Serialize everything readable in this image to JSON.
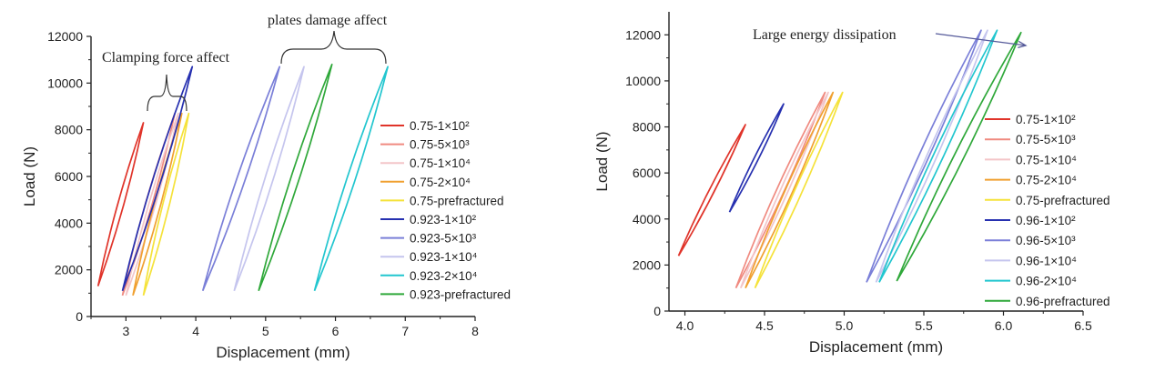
{
  "chart_data": [
    {
      "type": "line",
      "xlabel": "Displacement (mm)",
      "ylabel": "Load (N)",
      "xlim": [
        2.5,
        8
      ],
      "ylim": [
        0,
        12000
      ],
      "xticks": [
        "3",
        "4",
        "5",
        "6",
        "7",
        "8"
      ],
      "yticks": [
        "0",
        "2000",
        "4000",
        "6000",
        "8000",
        "10000",
        "12000"
      ],
      "legend": "right",
      "annotations": [
        "plates damage affect",
        "Clamping force affect"
      ],
      "series": [
        {
          "name": "0.75-1×10²",
          "color": "#e0342a",
          "lower": [
            [
              2.6,
              1300
            ],
            [
              3.25,
              8300
            ]
          ],
          "upper": [
            [
              2.6,
              1300
            ],
            [
              3.25,
              8300
            ]
          ]
        },
        {
          "name": "0.75-5×10³",
          "color": "#f08a80",
          "lower": [
            [
              2.95,
              900
            ],
            [
              3.7,
              8700
            ]
          ],
          "upper": [
            [
              2.95,
              900
            ],
            [
              3.7,
              8700
            ]
          ]
        },
        {
          "name": "0.75-1×10⁴",
          "color": "#f3c5c8",
          "lower": [
            [
              3.0,
              900
            ],
            [
              3.75,
              8700
            ]
          ],
          "upper": [
            [
              3.0,
              900
            ],
            [
              3.75,
              8700
            ]
          ]
        },
        {
          "name": "0.75-2×10⁴",
          "color": "#f0a030",
          "lower": [
            [
              3.1,
              900
            ],
            [
              3.8,
              8700
            ]
          ],
          "upper": [
            [
              3.1,
              900
            ],
            [
              3.8,
              8700
            ]
          ]
        },
        {
          "name": "0.75-prefractured",
          "color": "#f5e23a",
          "lower": [
            [
              3.25,
              900
            ],
            [
              3.9,
              8700
            ]
          ],
          "upper": [
            [
              3.25,
              900
            ],
            [
              3.9,
              8700
            ]
          ]
        },
        {
          "name": "0.923-1×10²",
          "color": "#2630b0",
          "lower": [
            [
              2.95,
              1100
            ],
            [
              3.95,
              10700
            ]
          ],
          "upper": [
            [
              2.95,
              1100
            ],
            [
              3.95,
              10700
            ]
          ]
        },
        {
          "name": "0.923-5×10³",
          "color": "#7a7fd8",
          "lower": [
            [
              4.1,
              1100
            ],
            [
              5.2,
              10700
            ]
          ],
          "upper": [
            [
              4.1,
              1100
            ],
            [
              5.2,
              10700
            ]
          ]
        },
        {
          "name": "0.923-1×10⁴",
          "color": "#c5c5ee",
          "lower": [
            [
              4.55,
              1100
            ],
            [
              5.55,
              10700
            ]
          ],
          "upper": [
            [
              4.55,
              1100
            ],
            [
              5.55,
              10700
            ]
          ]
        },
        {
          "name": "0.923-2×10⁴",
          "color": "#22c6cf",
          "lower": [
            [
              5.7,
              1100
            ],
            [
              6.75,
              10700
            ]
          ],
          "upper": [
            [
              5.7,
              1100
            ],
            [
              6.75,
              10700
            ]
          ]
        },
        {
          "name": "0.923-prefractured",
          "color": "#2fa83a",
          "lower": [
            [
              4.9,
              1100
            ],
            [
              5.95,
              10800
            ]
          ],
          "upper": [
            [
              4.9,
              1100
            ],
            [
              5.95,
              10800
            ]
          ]
        }
      ]
    },
    {
      "type": "line",
      "xlabel": "Displacement (mm)",
      "ylabel": "Load (N)",
      "xlim": [
        3.9,
        6.5
      ],
      "ylim": [
        0,
        13000
      ],
      "xticks": [
        "4.0",
        "4.5",
        "5.0",
        "5.5",
        "6.0",
        "6.5"
      ],
      "yticks": [
        "0",
        "2000",
        "4000",
        "6000",
        "8000",
        "10000",
        "12000"
      ],
      "legend": "right",
      "annotations": [
        "Large energy dissipation"
      ],
      "series": [
        {
          "name": "0.75-1×10²",
          "color": "#e0342a",
          "lower": [
            [
              3.96,
              2400
            ],
            [
              4.38,
              8100
            ]
          ],
          "upper": [
            [
              3.96,
              2400
            ],
            [
              4.38,
              8100
            ]
          ]
        },
        {
          "name": "0.75-5×10³",
          "color": "#f08a80",
          "lower": [
            [
              4.32,
              1000
            ],
            [
              4.88,
              9500
            ]
          ],
          "upper": [
            [
              4.32,
              1000
            ],
            [
              4.88,
              9500
            ]
          ]
        },
        {
          "name": "0.75-1×10⁴",
          "color": "#f3c5c8",
          "lower": [
            [
              4.35,
              1000
            ],
            [
              4.9,
              9500
            ]
          ],
          "upper": [
            [
              4.35,
              1000
            ],
            [
              4.9,
              9500
            ]
          ]
        },
        {
          "name": "0.75-2×10⁴",
          "color": "#f0a030",
          "lower": [
            [
              4.38,
              1000
            ],
            [
              4.93,
              9500
            ]
          ],
          "upper": [
            [
              4.38,
              1000
            ],
            [
              4.93,
              9500
            ]
          ]
        },
        {
          "name": "0.75-prefractured",
          "color": "#f5e23a",
          "lower": [
            [
              4.44,
              1000
            ],
            [
              4.99,
              9500
            ]
          ],
          "upper": [
            [
              4.44,
              1000
            ],
            [
              4.99,
              9500
            ]
          ]
        },
        {
          "name": "0.96-1×10²",
          "color": "#2630b0",
          "lower": [
            [
              4.28,
              4300
            ],
            [
              4.62,
              9000
            ]
          ],
          "upper": [
            [
              4.28,
              4300
            ],
            [
              4.62,
              9000
            ]
          ]
        },
        {
          "name": "0.96-5×10³",
          "color": "#7a7fd8",
          "lower": [
            [
              5.14,
              1250
            ],
            [
              5.86,
              12200
            ]
          ],
          "upper": [
            [
              5.14,
              1250
            ],
            [
              5.86,
              12200
            ]
          ]
        },
        {
          "name": "0.96-1×10⁴",
          "color": "#c5c5ee",
          "lower": [
            [
              5.2,
              1250
            ],
            [
              5.9,
              12200
            ]
          ],
          "upper": [
            [
              5.2,
              1250
            ],
            [
              5.9,
              12200
            ]
          ]
        },
        {
          "name": "0.96-2×10⁴",
          "color": "#22c6cf",
          "lower": [
            [
              5.22,
              1250
            ],
            [
              5.96,
              12200
            ]
          ],
          "upper": [
            [
              5.22,
              1250
            ],
            [
              5.96,
              12200
            ]
          ]
        },
        {
          "name": "0.96-prefractured",
          "color": "#2fa83a",
          "lower": [
            [
              5.33,
              1300
            ],
            [
              6.11,
              12100
            ]
          ],
          "upper": [
            [
              5.33,
              1300
            ],
            [
              6.11,
              12100
            ]
          ]
        }
      ]
    }
  ]
}
